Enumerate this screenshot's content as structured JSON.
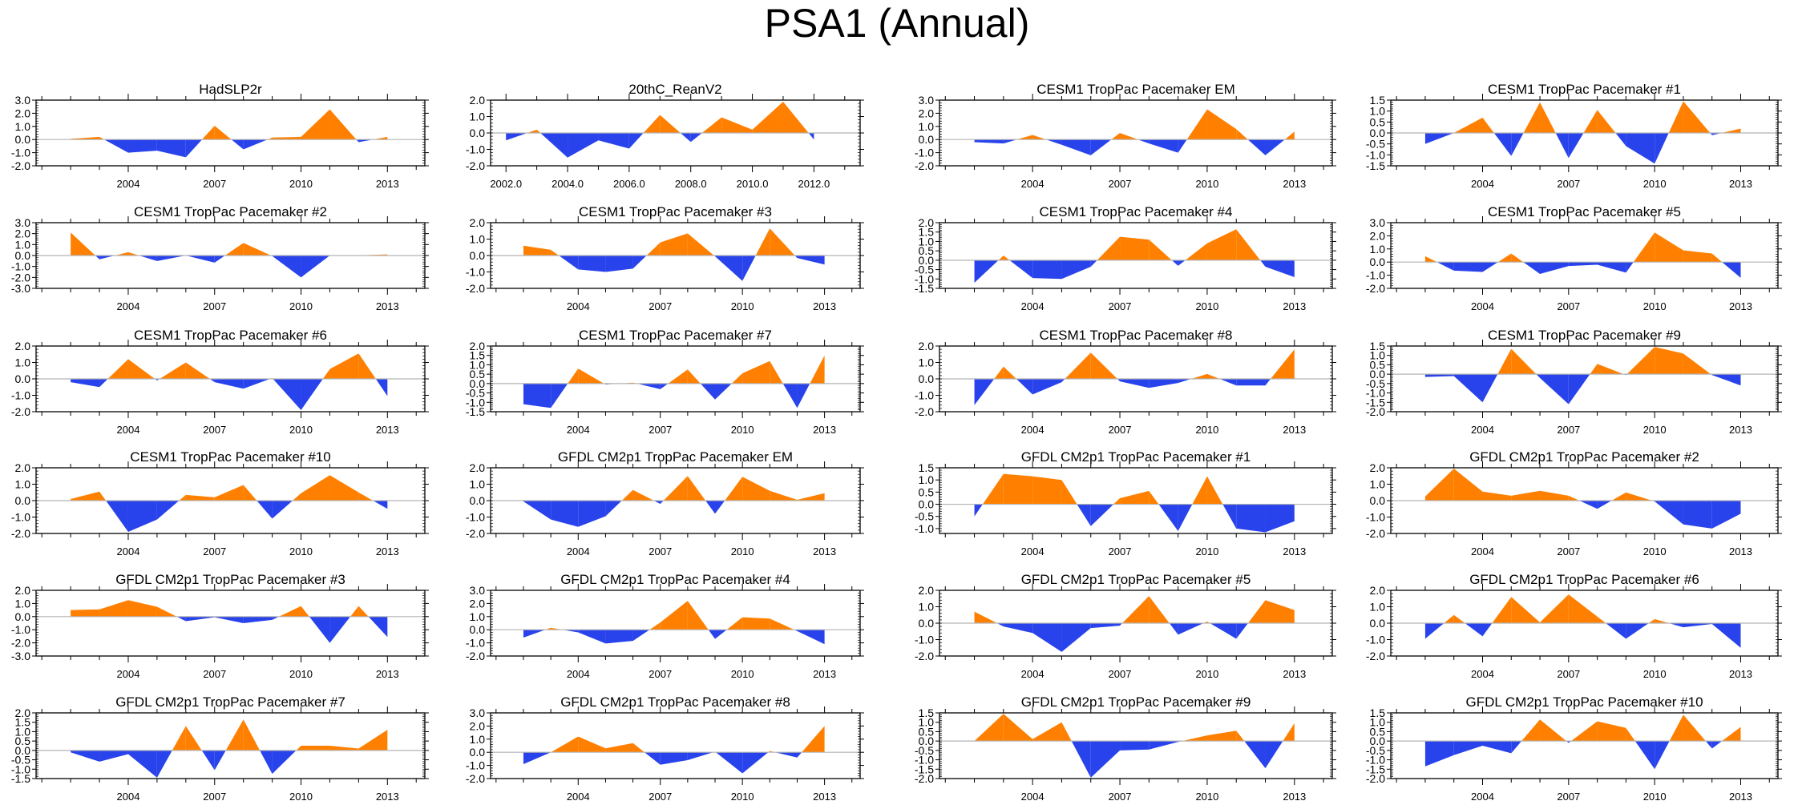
{
  "chart_data": {
    "type": "area",
    "title": "PSA1 (Annual)",
    "fill_colors": {
      "positive": "#ff8000",
      "negative": "#2943ec"
    },
    "zero_line_color": "#b3b3b3",
    "x_years": [
      2002,
      2003,
      2004,
      2005,
      2006,
      2007,
      2008,
      2009,
      2010,
      2011,
      2012,
      2013
    ],
    "panels": [
      {
        "title": "HadSLP2r",
        "ylim": [
          -2.0,
          3.0
        ],
        "yticks": [
          "-2.0",
          "-1.0",
          "0.0",
          "1.0",
          "2.0",
          "3.0"
        ],
        "xticks": [
          "2004",
          "2007",
          "2010",
          "2013"
        ],
        "values": [
          0.05,
          0.2,
          -1.0,
          -0.85,
          -1.35,
          1.05,
          -0.75,
          0.15,
          0.2,
          2.3,
          -0.2,
          0.2
        ]
      },
      {
        "title": "20thC_ReanV2",
        "ylim": [
          -2.0,
          2.0
        ],
        "yticks": [
          "-2.0",
          "-1.0",
          "0.0",
          "1.0",
          "2.0"
        ],
        "xticks": [
          "2002.0",
          "2004.0",
          "2006.0",
          "2008.0",
          "2010.0",
          "2012.0"
        ],
        "xlim_variant": "2002-2012",
        "values": [
          -0.45,
          0.2,
          -1.5,
          -0.45,
          -0.95,
          1.1,
          -0.55,
          0.95,
          0.2,
          1.9,
          -0.4
        ]
      },
      {
        "title": "CESM1 TropPac Pacemaker EM",
        "ylim": [
          -2.0,
          3.0
        ],
        "yticks": [
          "-2.0",
          "-1.0",
          "0.0",
          "1.0",
          "2.0",
          "3.0"
        ],
        "xticks": [
          "2004",
          "2007",
          "2010",
          "2013"
        ],
        "values": [
          -0.2,
          -0.3,
          0.35,
          -0.4,
          -1.2,
          0.5,
          -0.3,
          -1.0,
          2.3,
          0.8,
          -1.2,
          0.6
        ]
      },
      {
        "title": "CESM1 TropPac Pacemaker #1",
        "ylim": [
          -1.5,
          1.5
        ],
        "yticks": [
          "-1.5",
          "-1.0",
          "-0.5",
          "0.0",
          "0.5",
          "1.0",
          "1.5"
        ],
        "xticks": [
          "2004",
          "2007",
          "2010",
          "2013"
        ],
        "values": [
          -0.5,
          0.0,
          0.7,
          -1.05,
          1.4,
          -1.15,
          1.05,
          -0.6,
          -1.4,
          1.45,
          -0.1,
          0.2
        ]
      },
      {
        "title": "CESM1 TropPac Pacemaker #2",
        "ylim": [
          -3.0,
          3.0
        ],
        "yticks": [
          "-3.0",
          "-2.0",
          "-1.0",
          "0.0",
          "1.0",
          "2.0",
          "3.0"
        ],
        "xticks": [
          "2004",
          "2007",
          "2010",
          "2013"
        ],
        "values": [
          2.1,
          -0.35,
          0.3,
          -0.5,
          0.0,
          -0.65,
          1.15,
          -0.05,
          -2.0,
          0.0,
          0.02,
          0.1
        ]
      },
      {
        "title": "CESM1 TropPac Pacemaker #3",
        "ylim": [
          -2.0,
          2.0
        ],
        "yticks": [
          "-2.0",
          "-1.0",
          "0.0",
          "1.0",
          "2.0"
        ],
        "xticks": [
          "2004",
          "2007",
          "2010",
          "2013"
        ],
        "values": [
          0.6,
          0.35,
          -0.85,
          -1.0,
          -0.8,
          0.8,
          1.35,
          -0.05,
          -1.55,
          1.65,
          -0.15,
          -0.55
        ]
      },
      {
        "title": "CESM1 TropPac Pacemaker #4",
        "ylim": [
          -1.5,
          2.0
        ],
        "yticks": [
          "-1.5",
          "-1.0",
          "-0.5",
          "0.0",
          "0.5",
          "1.0",
          "1.5",
          "2.0"
        ],
        "xticks": [
          "2004",
          "2007",
          "2010",
          "2013"
        ],
        "values": [
          -1.2,
          0.25,
          -0.95,
          -1.0,
          -0.35,
          1.25,
          1.1,
          -0.3,
          0.9,
          1.65,
          -0.35,
          -0.9
        ]
      },
      {
        "title": "CESM1 TropPac Pacemaker #5",
        "ylim": [
          -2.0,
          3.0
        ],
        "yticks": [
          "-2.0",
          "-1.0",
          "0.0",
          "1.0",
          "2.0",
          "3.0"
        ],
        "xticks": [
          "2004",
          "2007",
          "2010",
          "2013"
        ],
        "values": [
          0.45,
          -0.65,
          -0.75,
          0.65,
          -0.9,
          -0.3,
          -0.2,
          -0.8,
          2.25,
          0.9,
          0.65,
          -1.2
        ]
      },
      {
        "title": "CESM1 TropPac Pacemaker #6",
        "ylim": [
          -2.0,
          2.0
        ],
        "yticks": [
          "-2.0",
          "-1.0",
          "0.0",
          "1.0",
          "2.0"
        ],
        "xticks": [
          "2004",
          "2007",
          "2010",
          "2013"
        ],
        "values": [
          -0.2,
          -0.5,
          1.2,
          -0.1,
          1.0,
          -0.2,
          -0.6,
          0.05,
          -1.9,
          0.6,
          1.55,
          -1.05
        ]
      },
      {
        "title": "CESM1 TropPac Pacemaker #7",
        "ylim": [
          -1.5,
          2.0
        ],
        "yticks": [
          "-1.5",
          "-1.0",
          "-0.5",
          "0.0",
          "0.5",
          "1.0",
          "1.5",
          "2.0"
        ],
        "xticks": [
          "2004",
          "2007",
          "2010",
          "2013"
        ],
        "values": [
          -1.1,
          -1.3,
          0.8,
          -0.05,
          0.05,
          -0.3,
          0.75,
          -0.85,
          0.55,
          1.2,
          -1.3,
          1.5
        ]
      },
      {
        "title": "CESM1 TropPac Pacemaker #8",
        "ylim": [
          -2.0,
          2.0
        ],
        "yticks": [
          "-2.0",
          "-1.0",
          "0.0",
          "1.0",
          "2.0"
        ],
        "xticks": [
          "2004",
          "2007",
          "2010",
          "2013"
        ],
        "values": [
          -1.6,
          0.75,
          -0.95,
          -0.2,
          1.6,
          -0.15,
          -0.55,
          -0.25,
          0.3,
          -0.4,
          -0.4,
          1.8
        ]
      },
      {
        "title": "CESM1 TropPac Pacemaker #9",
        "ylim": [
          -2.0,
          1.5
        ],
        "yticks": [
          "-2.0",
          "-1.5",
          "-1.0",
          "-0.5",
          "0.0",
          "0.5",
          "1.0",
          "1.5"
        ],
        "xticks": [
          "2004",
          "2007",
          "2010",
          "2013"
        ],
        "values": [
          -0.15,
          -0.1,
          -1.5,
          1.35,
          -0.2,
          -1.6,
          0.55,
          -0.05,
          1.45,
          1.1,
          -0.05,
          -0.6
        ]
      },
      {
        "title": "CESM1 TropPac Pacemaker #10",
        "ylim": [
          -2.0,
          2.0
        ],
        "yticks": [
          "-2.0",
          "-1.0",
          "0.0",
          "1.0",
          "2.0"
        ],
        "xticks": [
          "2004",
          "2007",
          "2010",
          "2013"
        ],
        "values": [
          0.1,
          0.55,
          -1.9,
          -1.15,
          0.35,
          0.2,
          0.95,
          -1.1,
          0.45,
          1.55,
          0.5,
          -0.5
        ]
      },
      {
        "title": "GFDL CM2p1 TropPac Pacemaker EM",
        "ylim": [
          -2.0,
          2.0
        ],
        "yticks": [
          "-2.0",
          "-1.0",
          "0.0",
          "1.0",
          "2.0"
        ],
        "xticks": [
          "2004",
          "2007",
          "2010",
          "2013"
        ],
        "values": [
          -0.05,
          -1.15,
          -1.6,
          -0.95,
          0.65,
          -0.2,
          1.5,
          -0.8,
          1.45,
          0.6,
          0.05,
          0.45
        ]
      },
      {
        "title": "GFDL CM2p1 TropPac Pacemaker #1",
        "ylim": [
          -1.2,
          1.5
        ],
        "yticks": [
          "-1.0",
          "-0.5",
          "0.0",
          "0.5",
          "1.0",
          "1.5"
        ],
        "xticks": [
          "2004",
          "2007",
          "2010",
          "2013"
        ],
        "values": [
          -0.5,
          1.25,
          1.15,
          1.0,
          -0.9,
          0.25,
          0.55,
          -1.1,
          1.15,
          -1.0,
          -1.15,
          -0.7
        ]
      },
      {
        "title": "GFDL CM2p1 TropPac Pacemaker #2",
        "ylim": [
          -2.0,
          2.0
        ],
        "yticks": [
          "-2.0",
          "-1.0",
          "0.0",
          "1.0",
          "2.0"
        ],
        "xticks": [
          "2004",
          "2007",
          "2010",
          "2013"
        ],
        "values": [
          0.25,
          1.95,
          0.55,
          0.3,
          0.6,
          0.3,
          -0.5,
          0.5,
          -0.05,
          -1.45,
          -1.7,
          -0.8
        ]
      },
      {
        "title": "GFDL CM2p1 TropPac Pacemaker #3",
        "ylim": [
          -3.0,
          2.0
        ],
        "yticks": [
          "-3.0",
          "-2.0",
          "-1.0",
          "0.0",
          "1.0",
          "2.0"
        ],
        "xticks": [
          "2004",
          "2007",
          "2010",
          "2013"
        ],
        "values": [
          0.5,
          0.55,
          1.25,
          0.75,
          -0.35,
          -0.05,
          -0.5,
          -0.25,
          0.8,
          -2.0,
          0.8,
          -1.55
        ]
      },
      {
        "title": "GFDL CM2p1 TropPac Pacemaker #4",
        "ylim": [
          -2.0,
          3.0
        ],
        "yticks": [
          "-2.0",
          "-1.0",
          "0.0",
          "1.0",
          "2.0",
          "3.0"
        ],
        "xticks": [
          "2004",
          "2007",
          "2010",
          "2013"
        ],
        "values": [
          -0.6,
          0.15,
          -0.2,
          -1.05,
          -0.85,
          0.55,
          2.2,
          -0.7,
          0.95,
          0.85,
          -0.1,
          -1.1
        ]
      },
      {
        "title": "GFDL CM2p1 TropPac Pacemaker #5",
        "ylim": [
          -2.0,
          2.0
        ],
        "yticks": [
          "-2.0",
          "-1.0",
          "0.0",
          "1.0",
          "2.0"
        ],
        "xticks": [
          "2004",
          "2007",
          "2010",
          "2013"
        ],
        "values": [
          0.7,
          -0.2,
          -0.6,
          -1.75,
          -0.3,
          -0.15,
          1.65,
          -0.7,
          0.1,
          -0.95,
          1.4,
          0.8
        ]
      },
      {
        "title": "GFDL CM2p1 TropPac Pacemaker #6",
        "ylim": [
          -2.0,
          2.0
        ],
        "yticks": [
          "-2.0",
          "-1.0",
          "0.0",
          "1.0",
          "2.0"
        ],
        "xticks": [
          "2004",
          "2007",
          "2010",
          "2013"
        ],
        "values": [
          -0.95,
          0.5,
          -0.8,
          1.6,
          0.05,
          1.75,
          0.4,
          -0.95,
          0.25,
          -0.25,
          -0.05,
          -1.5
        ]
      },
      {
        "title": "GFDL CM2p1 TropPac Pacemaker #7",
        "ylim": [
          -1.5,
          2.0
        ],
        "yticks": [
          "-1.5",
          "-1.0",
          "-0.5",
          "0.0",
          "0.5",
          "1.0",
          "1.5",
          "2.0"
        ],
        "xticks": [
          "2004",
          "2007",
          "2010",
          "2013"
        ],
        "values": [
          -0.1,
          -0.6,
          -0.2,
          -1.45,
          1.3,
          -1.05,
          1.65,
          -1.25,
          0.25,
          0.25,
          0.1,
          1.1
        ]
      },
      {
        "title": "GFDL CM2p1 TropPac Pacemaker #8",
        "ylim": [
          -2.0,
          3.0
        ],
        "yticks": [
          "-2.0",
          "-1.0",
          "0.0",
          "1.0",
          "2.0",
          "3.0"
        ],
        "xticks": [
          "2004",
          "2007",
          "2010",
          "2013"
        ],
        "values": [
          -0.9,
          0.0,
          1.2,
          0.3,
          0.7,
          -0.95,
          -0.6,
          0.05,
          -1.6,
          0.1,
          -0.4,
          2.0
        ]
      },
      {
        "title": "GFDL CM2p1 TropPac Pacemaker #9",
        "ylim": [
          -2.0,
          1.5
        ],
        "yticks": [
          "-2.0",
          "-1.5",
          "-1.0",
          "-0.5",
          "0.0",
          "0.5",
          "1.0",
          "1.5"
        ],
        "xticks": [
          "2004",
          "2007",
          "2010",
          "2013"
        ],
        "values": [
          0.0,
          1.45,
          0.1,
          1.0,
          -1.95,
          -0.5,
          -0.45,
          -0.05,
          0.3,
          0.55,
          -1.45,
          0.95
        ]
      },
      {
        "title": "GFDL CM2p1 TropPac Pacemaker #10",
        "ylim": [
          -2.0,
          1.5
        ],
        "yticks": [
          "-2.0",
          "-1.5",
          "-1.0",
          "-0.5",
          "0.0",
          "0.5",
          "1.0",
          "1.5"
        ],
        "xticks": [
          "2004",
          "2007",
          "2010",
          "2013"
        ],
        "values": [
          -1.35,
          -0.75,
          -0.25,
          -0.65,
          1.15,
          -0.1,
          1.05,
          0.7,
          -1.5,
          1.4,
          -0.4,
          0.75
        ]
      }
    ]
  }
}
